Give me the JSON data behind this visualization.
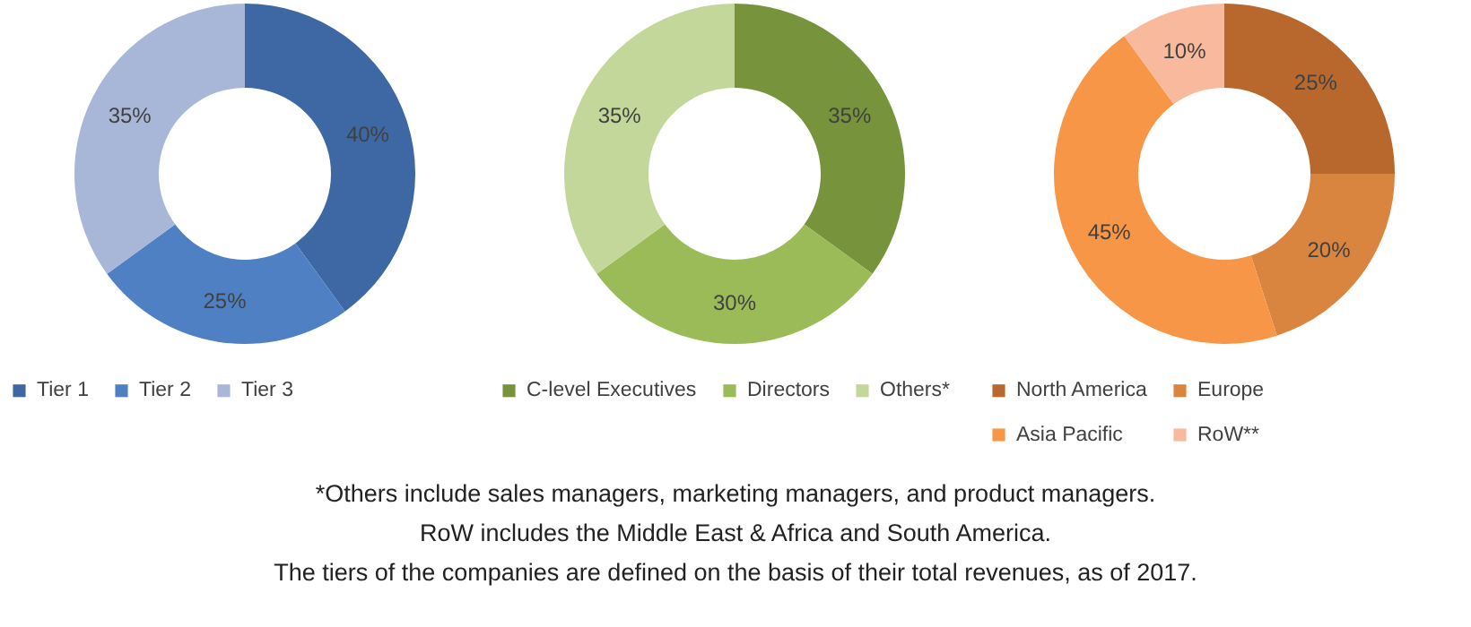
{
  "chart_data": [
    {
      "type": "donut",
      "categories": [
        "Tier 1",
        "Tier 2",
        "Tier 3"
      ],
      "values": [
        40,
        25,
        35
      ],
      "colors": [
        "#3e68a3",
        "#4f80c4",
        "#a8b7d7"
      ],
      "value_labels": [
        "40%",
        "25%",
        "35%"
      ],
      "legend": "bottom"
    },
    {
      "type": "donut",
      "categories": [
        "C-level Executives",
        "Directors",
        "Others*"
      ],
      "values": [
        35,
        30,
        35
      ],
      "colors": [
        "#77933c",
        "#9bbb59",
        "#c4d79b"
      ],
      "value_labels": [
        "35%",
        "30%",
        "35%"
      ],
      "legend": "bottom"
    },
    {
      "type": "donut",
      "categories": [
        "North America",
        "Europe",
        "Asia Pacific",
        "RoW**"
      ],
      "values": [
        25,
        20,
        45,
        10
      ],
      "colors": [
        "#b8682c",
        "#d9853f",
        "#f79646",
        "#f8b99c"
      ],
      "value_labels": [
        "25%",
        "20%",
        "45%",
        "10%"
      ],
      "legend": "bottom"
    },
    {
      "type": "other",
      "annotations": [
        "*Others include sales managers, marketing managers, and product managers.",
        "RoW includes the Middle East & Africa and South America.",
        "The tiers of the companies are defined on the basis of their total revenues, as of 2017."
      ]
    }
  ]
}
